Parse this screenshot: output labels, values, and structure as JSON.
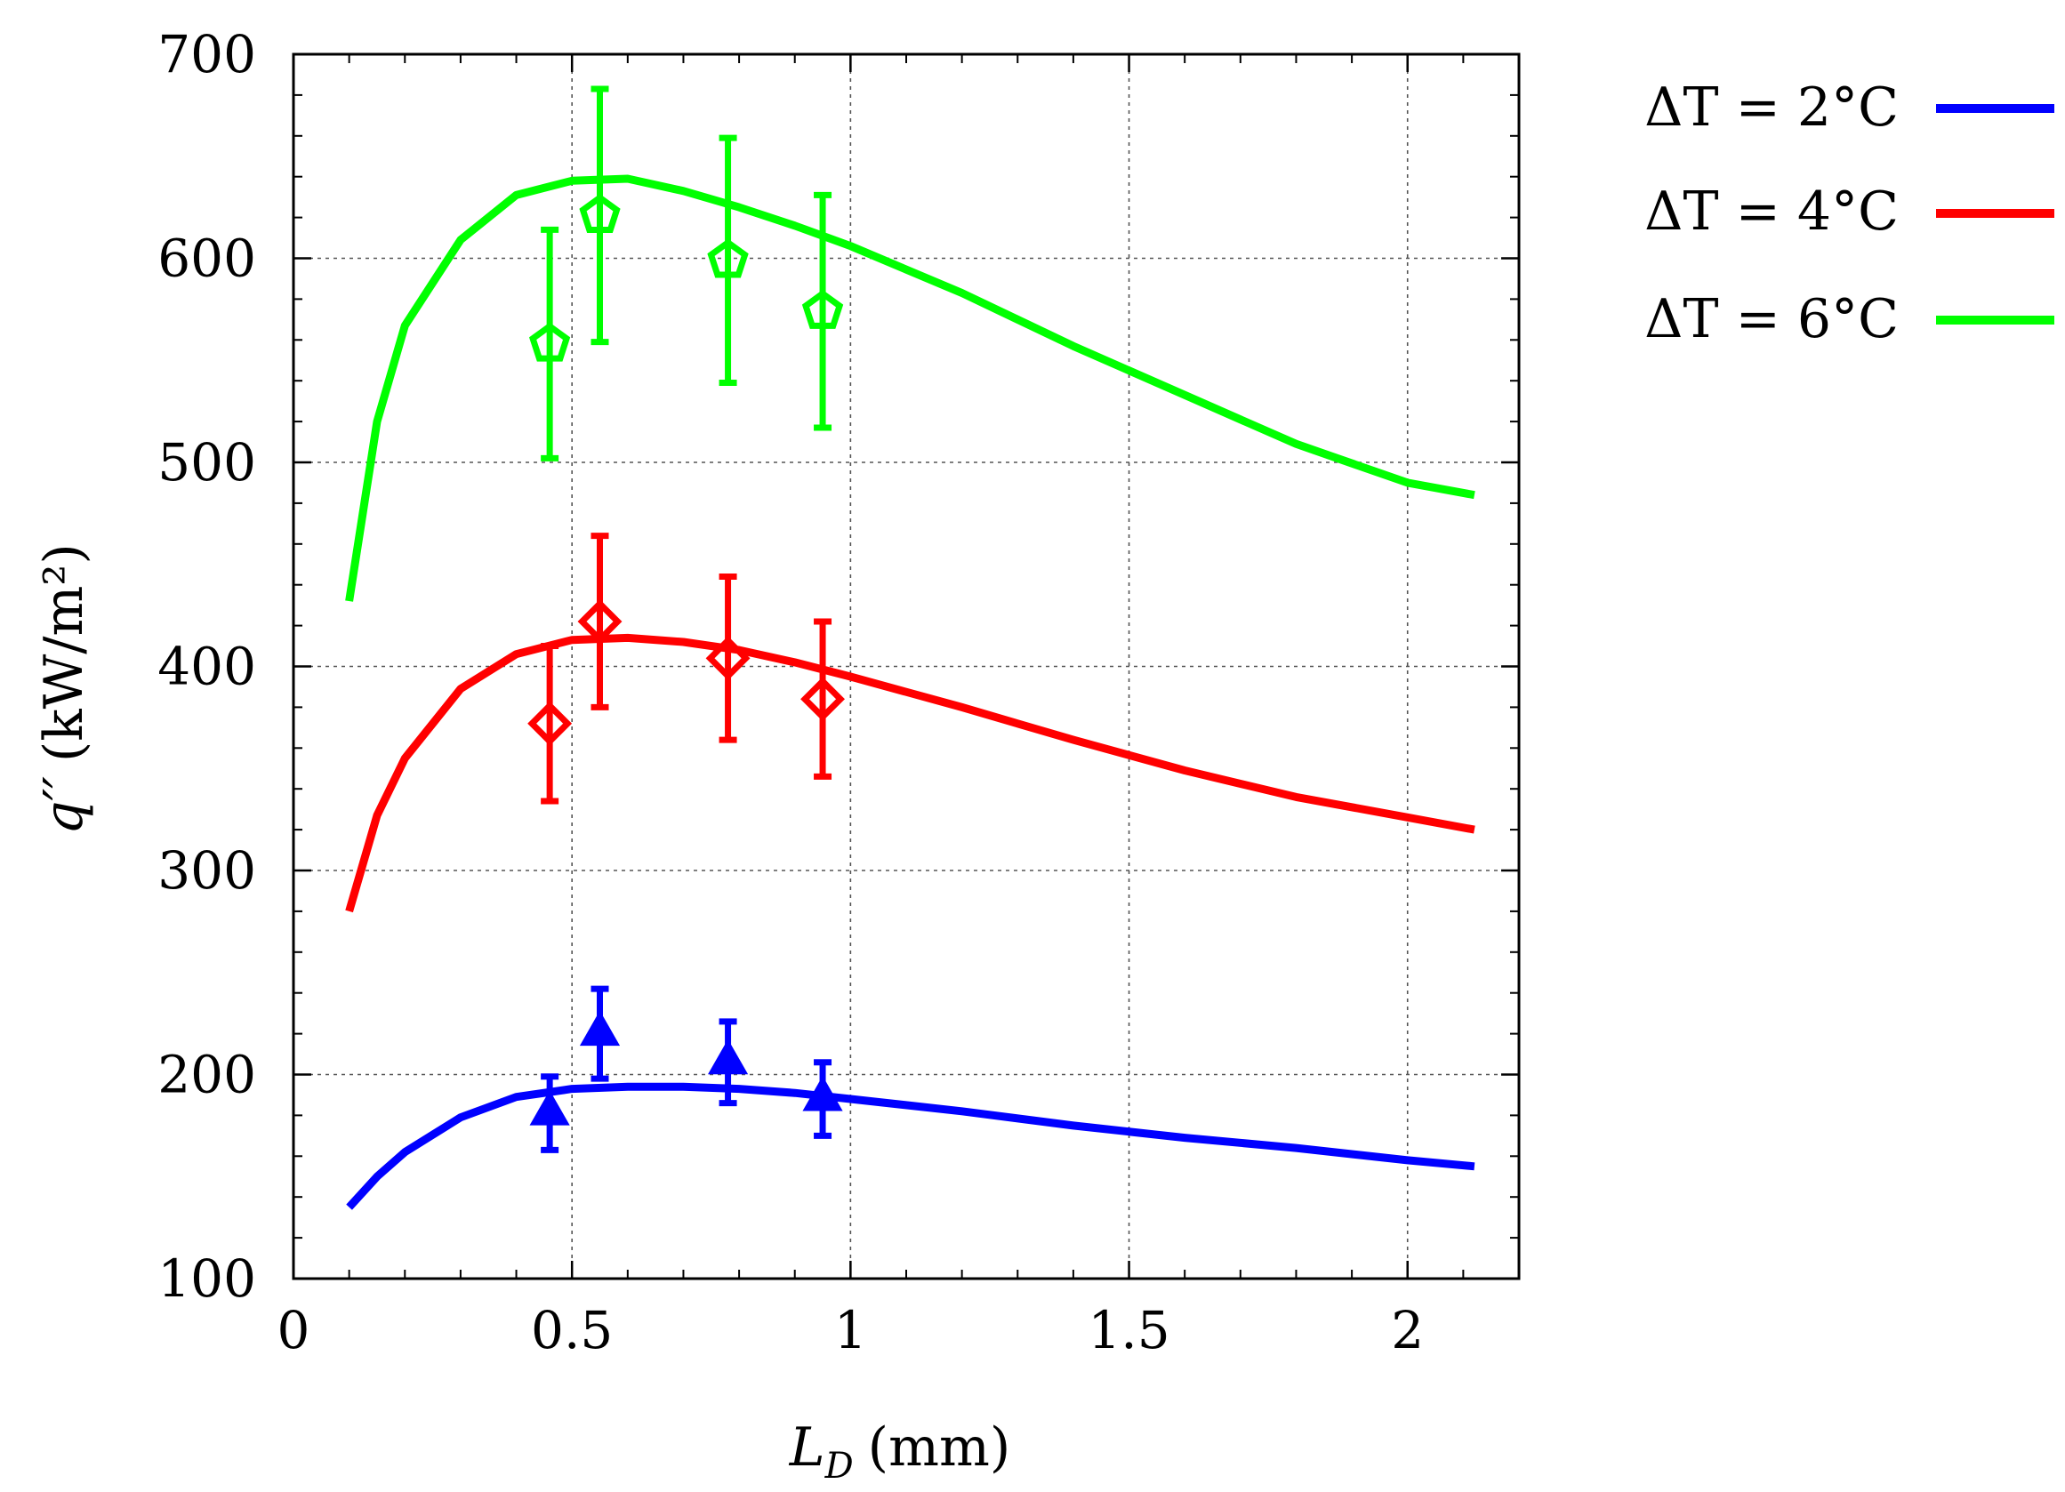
{
  "chart_data": {
    "type": "line",
    "xlabel_main": "L",
    "xlabel_sub": "D",
    "xlabel_unit": "(mm)",
    "ylabel_main": "q′′",
    "ylabel_unit": "(kW/m²)",
    "xlim": [
      0,
      2.2
    ],
    "ylim": [
      100,
      700
    ],
    "xticks": [
      0,
      0.5,
      1,
      1.5,
      2
    ],
    "xtick_labels": [
      "0",
      "0.5",
      "1",
      "1.5",
      "2"
    ],
    "yticks": [
      100,
      200,
      300,
      400,
      500,
      600,
      700
    ],
    "ytick_labels": [
      "100",
      "200",
      "300",
      "400",
      "500",
      "600",
      "700"
    ],
    "grid": true,
    "legend_position": "outside-right",
    "series": [
      {
        "name": "ΔT = 2°C",
        "color": "#0000ff",
        "marker": "triangle",
        "model_x": [
          0.1,
          0.15,
          0.2,
          0.3,
          0.4,
          0.5,
          0.6,
          0.7,
          0.8,
          0.9,
          1.0,
          1.2,
          1.4,
          1.6,
          1.8,
          2.0,
          2.12
        ],
        "model_y": [
          135,
          150,
          162,
          179,
          189,
          193,
          194,
          194,
          193,
          191,
          188,
          182,
          175,
          169,
          164,
          158,
          155
        ],
        "points": [
          {
            "x": 0.46,
            "y": 181,
            "err": 18
          },
          {
            "x": 0.55,
            "y": 220,
            "err": 22
          },
          {
            "x": 0.78,
            "y": 206,
            "err": 20
          },
          {
            "x": 0.95,
            "y": 188,
            "err": 18
          }
        ]
      },
      {
        "name": "ΔT = 4°C",
        "color": "#ff0000",
        "marker": "diamond",
        "model_x": [
          0.1,
          0.15,
          0.2,
          0.3,
          0.4,
          0.5,
          0.6,
          0.7,
          0.8,
          0.9,
          1.0,
          1.2,
          1.4,
          1.6,
          1.8,
          2.0,
          2.12
        ],
        "model_y": [
          280,
          327,
          355,
          389,
          406,
          413,
          414,
          412,
          408,
          402,
          395,
          380,
          364,
          349,
          336,
          326,
          320
        ],
        "points": [
          {
            "x": 0.46,
            "y": 372,
            "err": 38
          },
          {
            "x": 0.55,
            "y": 422,
            "err": 42
          },
          {
            "x": 0.78,
            "y": 404,
            "err": 40
          },
          {
            "x": 0.95,
            "y": 384,
            "err": 38
          }
        ]
      },
      {
        "name": "ΔT = 6°C",
        "color": "#00ff00",
        "marker": "pentagon",
        "model_x": [
          0.1,
          0.15,
          0.2,
          0.3,
          0.4,
          0.5,
          0.6,
          0.7,
          0.8,
          0.9,
          1.0,
          1.2,
          1.4,
          1.6,
          1.8,
          2.0,
          2.12
        ],
        "model_y": [
          432,
          520,
          567,
          609,
          631,
          638,
          639,
          633,
          625,
          616,
          606,
          583,
          557,
          533,
          509,
          490,
          484
        ],
        "points": [
          {
            "x": 0.46,
            "y": 558,
            "err": 56
          },
          {
            "x": 0.55,
            "y": 621,
            "err": 62
          },
          {
            "x": 0.78,
            "y": 599,
            "err": 60
          },
          {
            "x": 0.95,
            "y": 574,
            "err": 57
          }
        ]
      }
    ]
  }
}
